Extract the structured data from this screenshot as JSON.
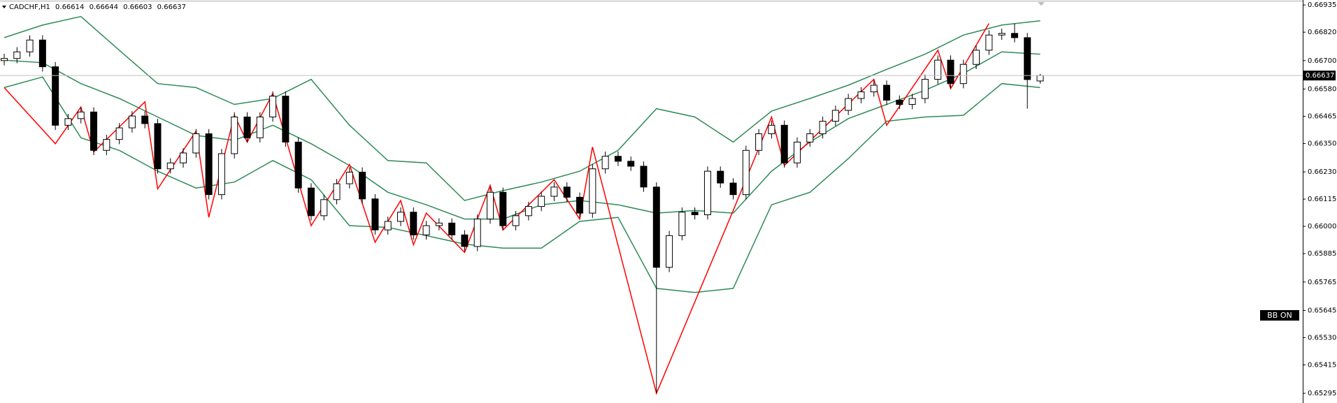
{
  "chart_data": {
    "type": "candlestick",
    "symbol": "CADCHF,H1",
    "indicator_label": "BB ON",
    "up_color": "#ffffff",
    "down_color": "#000000",
    "ylim": [
      0.65254,
      0.66956
    ],
    "yticks": [
      0.66935,
      {
        "value": 0.6682,
        "label": "0.66820"
      },
      {
        "value": 0.667,
        "label": "0.66700"
      },
      {
        "value": 0.6658,
        "label": "0.66580"
      },
      0.66465,
      {
        "value": 0.6635,
        "label": "0.66350"
      },
      {
        "value": 0.6623,
        "label": "0.66230"
      },
      0.66115,
      {
        "value": 0.66,
        "label": "0.66000"
      },
      0.65885,
      0.65765,
      0.65645,
      {
        "value": 0.6553,
        "label": "0.65530"
      },
      0.65415,
      0.65295
    ],
    "open": [
      0.667,
      0.66709,
      0.66737,
      0.66787,
      0.66674,
      0.66427,
      0.66455,
      0.66483,
      0.66321,
      0.66367,
      0.66416,
      0.66466,
      0.66434,
      0.66243,
      0.66268,
      0.6631,
      0.66391,
      0.66134,
      0.66307,
      0.66462,
      0.66374,
      0.66462,
      0.6655,
      0.66356,
      0.66162,
      0.66045,
      0.66113,
      0.6618,
      0.66229,
      0.66116,
      0.65985,
      0.66021,
      0.6606,
      0.65964,
      0.66003,
      0.66014,
      0.65964,
      0.65915,
      0.66031,
      0.66144,
      0.66003,
      0.66045,
      0.66084,
      0.66127,
      0.66166,
      0.66123,
      0.66056,
      0.66243,
      0.66296,
      0.66275,
      0.66254,
      0.66166,
      0.65827,
      0.65961,
      0.6606,
      0.66049,
      0.66233,
      0.66183,
      0.66134,
      0.66321,
      0.66391,
      0.66427,
      0.66268,
      0.66356,
      0.66391,
      0.66444,
      0.6649,
      0.6654,
      0.66568,
      0.66596,
      0.66533,
      0.66515,
      0.6654,
      0.66621,
      0.66702,
      0.66603,
      0.66684,
      0.66744,
      0.66808,
      0.66815,
      0.66797,
      0.66614
    ],
    "high": [
      0.66729,
      0.66757,
      0.66807,
      0.66807,
      0.66694,
      0.66475,
      0.66503,
      0.66503,
      0.66387,
      0.66436,
      0.66486,
      0.66486,
      0.66454,
      0.66288,
      0.6633,
      0.66411,
      0.66411,
      0.66327,
      0.66482,
      0.66482,
      0.66482,
      0.6657,
      0.6657,
      0.66376,
      0.66182,
      0.66133,
      0.662,
      0.66249,
      0.66249,
      0.66136,
      0.66041,
      0.6608,
      0.6608,
      0.66023,
      0.66034,
      0.66034,
      0.65984,
      0.66051,
      0.66164,
      0.66164,
      0.66065,
      0.66104,
      0.66147,
      0.66186,
      0.66186,
      0.66143,
      0.66263,
      0.66316,
      0.66316,
      0.66295,
      0.66274,
      0.66186,
      0.65981,
      0.6608,
      0.6608,
      0.66253,
      0.66253,
      0.66203,
      0.66341,
      0.66411,
      0.66447,
      0.66447,
      0.66376,
      0.66411,
      0.66464,
      0.6651,
      0.6656,
      0.66588,
      0.66616,
      0.66616,
      0.66553,
      0.6656,
      0.66641,
      0.66722,
      0.66722,
      0.66704,
      0.66764,
      0.66828,
      0.66835,
      0.66857,
      0.66817,
      0.66644
    ],
    "low": [
      0.6668,
      0.66689,
      0.66717,
      0.66654,
      0.66407,
      0.66407,
      0.66435,
      0.66301,
      0.66301,
      0.66347,
      0.66396,
      0.66414,
      0.66223,
      0.66223,
      0.66248,
      0.6629,
      0.66114,
      0.66114,
      0.66287,
      0.66354,
      0.66354,
      0.66442,
      0.66336,
      0.66142,
      0.66025,
      0.66025,
      0.66093,
      0.6616,
      0.66096,
      0.65965,
      0.65965,
      0.66001,
      0.65944,
      0.65944,
      0.65983,
      0.65944,
      0.65895,
      0.65895,
      0.66011,
      0.65983,
      0.65983,
      0.66025,
      0.66064,
      0.66107,
      0.66103,
      0.66036,
      0.66036,
      0.66223,
      0.66255,
      0.66234,
      0.66146,
      0.65295,
      0.65807,
      0.65941,
      0.66029,
      0.66029,
      0.66163,
      0.66114,
      0.66114,
      0.66301,
      0.66371,
      0.66248,
      0.66248,
      0.66336,
      0.66371,
      0.66424,
      0.6647,
      0.6652,
      0.66548,
      0.66513,
      0.66495,
      0.66495,
      0.6652,
      0.66601,
      0.66583,
      0.66583,
      0.66664,
      0.66724,
      0.66788,
      0.66777,
      0.66497,
      0.66603
    ],
    "close": [
      0.66709,
      0.66737,
      0.66787,
      0.66674,
      0.66427,
      0.66455,
      0.66483,
      0.66321,
      0.66367,
      0.66416,
      0.66466,
      0.66434,
      0.66243,
      0.66268,
      0.6631,
      0.66391,
      0.66134,
      0.66307,
      0.66462,
      0.66374,
      0.66462,
      0.6655,
      0.66356,
      0.66162,
      0.66045,
      0.66113,
      0.6618,
      0.66229,
      0.66116,
      0.65985,
      0.66021,
      0.6606,
      0.65964,
      0.66003,
      0.66014,
      0.65964,
      0.65915,
      0.66031,
      0.66144,
      0.66003,
      0.66045,
      0.66084,
      0.66127,
      0.66166,
      0.66123,
      0.66056,
      0.66243,
      0.66296,
      0.66275,
      0.66254,
      0.66166,
      0.65827,
      0.65961,
      0.6606,
      0.66049,
      0.66233,
      0.66183,
      0.66134,
      0.66321,
      0.66391,
      0.66427,
      0.66268,
      0.66356,
      0.66391,
      0.66444,
      0.6649,
      0.6654,
      0.66568,
      0.66596,
      0.66533,
      0.66515,
      0.6654,
      0.66621,
      0.66702,
      0.66603,
      0.66684,
      0.66744,
      0.66808,
      0.66815,
      0.66797,
      0.6662,
      0.66637
    ],
    "bands": {
      "color": "#2e8b57",
      "x": [
        0,
        3,
        6,
        9,
        12,
        15,
        18,
        21,
        24,
        27,
        30,
        33,
        36,
        39,
        42,
        45,
        48,
        51,
        54,
        57,
        60,
        63,
        66,
        69,
        72,
        75,
        78,
        81
      ],
      "upper": [
        0.66797,
        0.6685,
        0.66886,
        0.66744,
        0.66603,
        0.66586,
        0.66515,
        0.6654,
        0.66621,
        0.66427,
        0.66278,
        0.66268,
        0.66109,
        0.66151,
        0.66187,
        0.66233,
        0.66321,
        0.66497,
        0.66462,
        0.66356,
        0.66487,
        0.6654,
        0.66596,
        0.66663,
        0.66727,
        0.66808,
        0.6685,
        0.66868
      ],
      "middle": [
        0.66702,
        0.66691,
        0.66603,
        0.6654,
        0.66462,
        0.66384,
        0.66363,
        0.66427,
        0.66349,
        0.66257,
        0.66144,
        0.66091,
        0.66031,
        0.66031,
        0.66091,
        0.66109,
        0.66091,
        0.66056,
        0.66067,
        0.66056,
        0.66233,
        0.66356,
        0.66455,
        0.66515,
        0.66575,
        0.66646,
        0.66737,
        0.66727
      ],
      "lower": [
        0.66586,
        0.66631,
        0.66374,
        0.66321,
        0.66233,
        0.66162,
        0.66187,
        0.66278,
        0.66197,
        0.66003,
        0.65996,
        0.65961,
        0.65925,
        0.65908,
        0.65908,
        0.66021,
        0.66038,
        0.65738,
        0.65721,
        0.65738,
        0.66091,
        0.66144,
        0.66286,
        0.66444,
        0.66462,
        0.66469,
        0.66603,
        0.66586
      ]
    },
    "zigzag": {
      "color": "#ff0000",
      "x": [
        0,
        4,
        6,
        7,
        11,
        12,
        15,
        16,
        18,
        19,
        21,
        24,
        27,
        29,
        31,
        32,
        33,
        36,
        38,
        39,
        43,
        45,
        46,
        51,
        57,
        60,
        61,
        68,
        69,
        73,
        74,
        77
      ],
      "values": [
        0.66586,
        0.66349,
        0.66504,
        0.66314,
        0.66526,
        0.66158,
        0.66402,
        0.66038,
        0.66469,
        0.66356,
        0.66561,
        0.66003,
        0.66261,
        0.65933,
        0.66109,
        0.65922,
        0.66056,
        0.6589,
        0.66173,
        0.65985,
        0.66197,
        0.66031,
        0.66335,
        0.65295,
        0.66067,
        0.66462,
        0.66257,
        0.66621,
        0.66427,
        0.66744,
        0.66582,
        0.66857
      ]
    }
  }
}
